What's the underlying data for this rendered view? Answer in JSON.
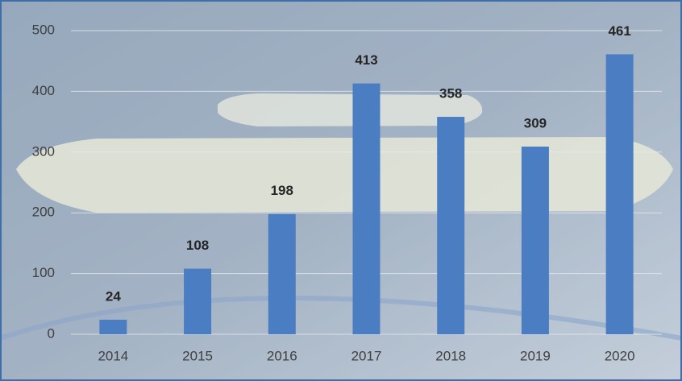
{
  "chart_data": {
    "type": "bar",
    "categories": [
      "2014",
      "2015",
      "2016",
      "2017",
      "2018",
      "2019",
      "2020"
    ],
    "values": [
      24,
      108,
      198,
      413,
      358,
      309,
      461
    ],
    "color": "#4a7dc2",
    "ylim": [
      0,
      500
    ],
    "yticks": [
      0,
      100,
      200,
      300,
      400,
      500
    ],
    "grid": true
  }
}
